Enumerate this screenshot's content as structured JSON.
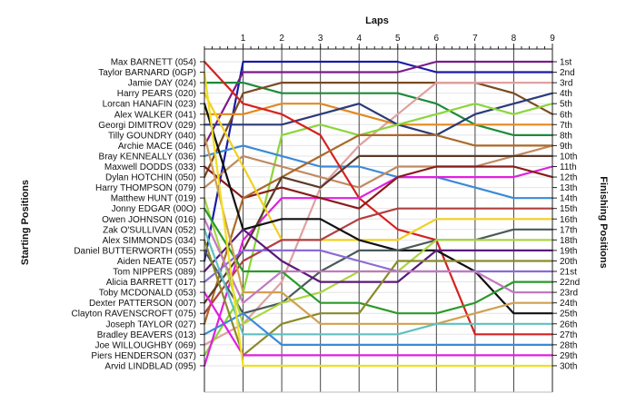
{
  "chart_data": {
    "type": "line",
    "subtype": "lap-chart",
    "xlabel": "Laps",
    "ylabel_left": "Starting Positions",
    "ylabel_right": "Finishing Positions",
    "x": [
      0,
      1,
      2,
      3,
      4,
      5,
      6,
      7,
      8,
      9
    ],
    "xticks": [
      "1",
      "2",
      "3",
      "4",
      "5",
      "6",
      "7",
      "8",
      "9"
    ],
    "xlim": [
      0,
      9
    ],
    "ylim": [
      1,
      30
    ],
    "y_inverted": true,
    "grid": true,
    "start_labels": [
      "Max BARNETT (054)",
      "Taylor BARNARD (0GP)",
      "Jamie DAY (024)",
      "Harry PEARS (020)",
      "Lorcan HANAFIN (023)",
      "Alex WALKER (041)",
      "Georgi DIMITROV (029)",
      "Tilly GOUNDRY (040)",
      "Archie MACE (046)",
      "Bray KENNEALLY (036)",
      "Maxwell DODDS (033)",
      "Dylan HOTCHIN (050)",
      "Harry THOMPSON (079)",
      "Matthew HUNT (019)",
      "Jonny EDGAR (00O)",
      "Owen JOHNSON (016)",
      "Zak O'SULLIVAN (052)",
      "Alex SIMMONDS (034)",
      "Daniel BUTTERWORTH (055)",
      "Aiden NEATE (057)",
      "Tom NIPPERS (089)",
      "Alicia BARRETT (017)",
      "Toby MCDONALD (053)",
      "Dexter PATTERSON (007)",
      "Clayton RAVENSCROFT (075)",
      "Joseph TAYLOR (027)",
      "Bradley BEAVERS (013)",
      "Joe WILLOUGHBY (069)",
      "Piers HENDERSON (037)",
      "Arvid LINDBLAD (095)"
    ],
    "finish_labels": [
      "1st",
      "2nd",
      "3rd",
      "4th",
      "5th",
      "6th",
      "7th",
      "8th",
      "9th",
      "10th",
      "11th",
      "12th",
      "13th",
      "14th",
      "15th",
      "16th",
      "17th",
      "18th",
      "19th",
      "20th",
      "21st",
      "22nd",
      "23rd",
      "24th",
      "25th",
      "26th",
      "27th",
      "28th",
      "29th",
      "30th"
    ],
    "series": [
      {
        "color": "#1a1aa8",
        "values": [
          20,
          1,
          1,
          1,
          1,
          1,
          2,
          2,
          2,
          2
        ]
      },
      {
        "color": "#7a1a8a",
        "values": [
          9,
          2,
          2,
          2,
          2,
          2,
          1,
          1,
          1,
          1
        ]
      },
      {
        "color": "#1f8a3a",
        "values": [
          3,
          3,
          4,
          4,
          4,
          4,
          5,
          7,
          8,
          8
        ]
      },
      {
        "color": "#7a4a20",
        "values": [
          12,
          4,
          3,
          3,
          3,
          3,
          3,
          3,
          4,
          6
        ]
      },
      {
        "color": "#e0a0a0",
        "values": [
          28,
          26,
          22,
          13,
          9,
          6,
          3,
          3,
          3,
          3
        ]
      },
      {
        "color": "#e08a20",
        "values": [
          6,
          6,
          5,
          5,
          6,
          7,
          7,
          7,
          7,
          7
        ]
      },
      {
        "color": "#2a3a7a",
        "values": [
          7,
          7,
          7,
          6,
          5,
          7,
          8,
          6,
          5,
          4
        ]
      },
      {
        "color": "#8ad63a",
        "values": [
          29,
          23,
          8,
          7,
          8,
          7,
          6,
          5,
          6,
          5
        ]
      },
      {
        "color": "#3a8ad6",
        "values": [
          10,
          9,
          10,
          11,
          11,
          12,
          12,
          13,
          14,
          14
        ]
      },
      {
        "color": "#c08a60",
        "values": [
          13,
          10,
          11,
          12,
          13,
          11,
          11,
          11,
          10,
          9
        ]
      },
      {
        "color": "#d62020",
        "values": [
          1,
          5,
          6,
          8,
          14,
          17,
          18,
          27,
          27,
          27
        ]
      },
      {
        "color": "#e020e0",
        "values": [
          30,
          18,
          14,
          14,
          14,
          12,
          12,
          12,
          12,
          11
        ]
      },
      {
        "color": "#8a1a1a",
        "values": [
          11,
          14,
          13,
          14,
          15,
          12,
          11,
          11,
          11,
          12
        ]
      },
      {
        "color": "#ab6a2a",
        "values": [
          26,
          14,
          12,
          10,
          8,
          8,
          8,
          9,
          9,
          9
        ]
      },
      {
        "color": "#5a3a2a",
        "values": [
          24,
          19,
          12,
          13,
          10,
          10,
          10,
          10,
          10,
          10
        ]
      },
      {
        "color": "#f0d020",
        "values": [
          4,
          11,
          18,
          18,
          18,
          18,
          16,
          16,
          16,
          16
        ]
      },
      {
        "color": "#b04040",
        "values": [
          25,
          20,
          18,
          18,
          16,
          15,
          15,
          15,
          15,
          15
        ]
      },
      {
        "color": "#111111",
        "values": [
          5,
          17,
          16,
          16,
          18,
          19,
          19,
          21,
          25,
          25
        ]
      },
      {
        "color": "#4a5a5a",
        "values": [
          19,
          25,
          24,
          21,
          19,
          19,
          18,
          18,
          17,
          17
        ]
      },
      {
        "color": "#aad640",
        "values": [
          14,
          26,
          24,
          23,
          21,
          21,
          18,
          18,
          18,
          18
        ]
      },
      {
        "color": "#8a6ad6",
        "values": [
          22,
          19,
          19,
          19,
          20,
          21,
          21,
          21,
          21,
          21
        ]
      },
      {
        "color": "#5a1a7a",
        "values": [
          21,
          17,
          20,
          22,
          22,
          22,
          19,
          19,
          19,
          19
        ]
      },
      {
        "color": "#2a9a2a",
        "values": [
          15,
          21,
          21,
          24,
          24,
          25,
          25,
          24,
          22,
          22
        ]
      },
      {
        "color": "#8a8a2a",
        "values": [
          18,
          29,
          26,
          25,
          25,
          20,
          20,
          20,
          20,
          20
        ]
      },
      {
        "color": "#d0a050",
        "values": [
          8,
          23,
          23,
          26,
          26,
          26,
          26,
          25,
          24,
          24
        ]
      },
      {
        "color": "#c07ac0",
        "values": [
          16,
          24,
          21,
          21,
          21,
          21,
          21,
          21,
          23,
          23
        ]
      },
      {
        "color": "#60c0c0",
        "values": [
          17,
          27,
          27,
          27,
          27,
          27,
          26,
          26,
          26,
          26
        ]
      },
      {
        "color": "#3a8ad6",
        "values": [
          27,
          25,
          28,
          28,
          28,
          28,
          28,
          28,
          28,
          28
        ]
      },
      {
        "color": "#e020e0",
        "values": [
          23,
          29,
          29,
          29,
          29,
          29,
          29,
          29,
          29,
          29
        ]
      },
      {
        "color": "#f0e020",
        "values": [
          2,
          30,
          30,
          30,
          30,
          30,
          30,
          30,
          30,
          30
        ]
      }
    ]
  }
}
